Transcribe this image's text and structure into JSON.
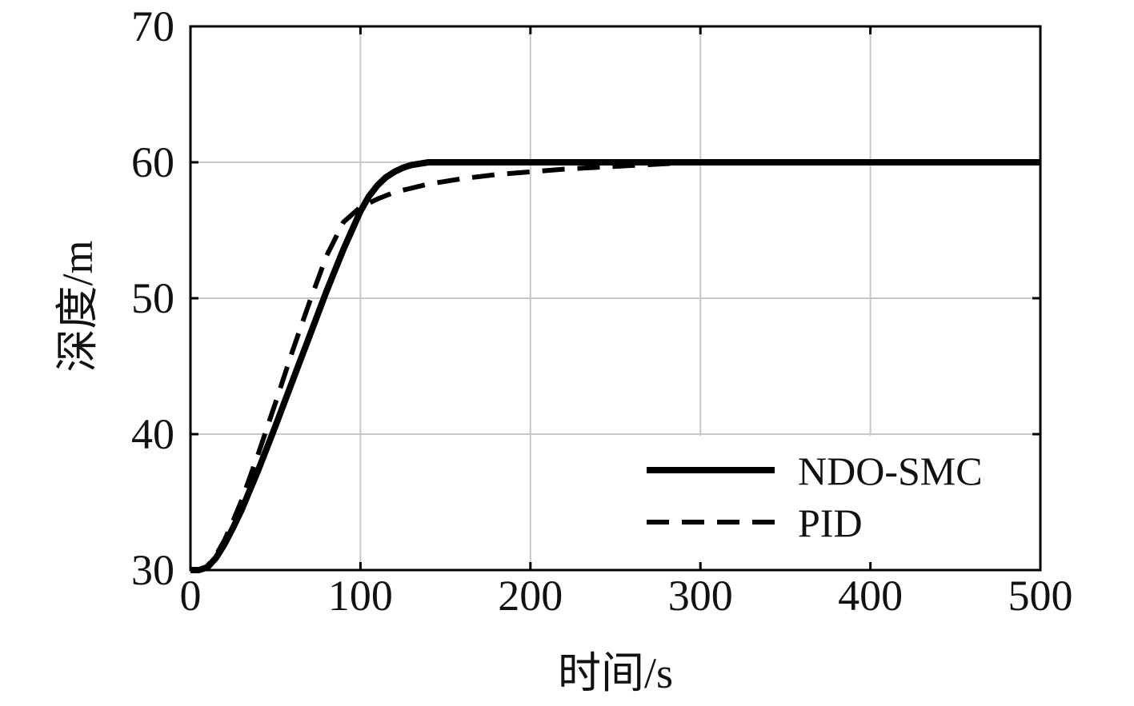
{
  "chart_data": {
    "type": "line",
    "title": "",
    "xlabel": "时间/s",
    "ylabel": "深度/m",
    "xlim": [
      0,
      500
    ],
    "ylim": [
      30,
      70
    ],
    "xticks": [
      0,
      100,
      200,
      300,
      400,
      500
    ],
    "yticks": [
      30,
      40,
      50,
      60,
      70
    ],
    "xtick_labels": [
      "0",
      "100",
      "200",
      "300",
      "400",
      "500"
    ],
    "ytick_labels": [
      "30",
      "40",
      "50",
      "60",
      "70"
    ],
    "grid": true,
    "legend_position": "bottom-right",
    "series": [
      {
        "name": "NDO-SMC",
        "style": "solid",
        "color": "#000000",
        "x": [
          0,
          5,
          10,
          15,
          20,
          25,
          30,
          40,
          50,
          60,
          70,
          80,
          90,
          100,
          105,
          110,
          115,
          120,
          125,
          130,
          135,
          140,
          150,
          160,
          200,
          250,
          300,
          400,
          500
        ],
        "y": [
          30,
          30,
          30.2,
          30.9,
          31.9,
          33.1,
          34.4,
          37.4,
          40.6,
          43.9,
          47.2,
          50.5,
          53.6,
          56.4,
          57.5,
          58.3,
          58.9,
          59.3,
          59.6,
          59.8,
          59.9,
          60,
          60,
          60,
          60,
          60,
          60,
          60,
          60
        ]
      },
      {
        "name": "PID",
        "style": "dashed",
        "color": "#000000",
        "x": [
          0,
          5,
          10,
          15,
          20,
          25,
          30,
          40,
          50,
          60,
          70,
          80,
          90,
          100,
          110,
          120,
          140,
          160,
          180,
          200,
          220,
          250,
          280,
          300,
          400,
          500
        ],
        "y": [
          30,
          30,
          30.3,
          31.1,
          32.2,
          33.6,
          35.1,
          38.6,
          42.3,
          46.1,
          49.7,
          53.1,
          55.6,
          56.7,
          57.3,
          57.8,
          58.4,
          58.8,
          59.1,
          59.3,
          59.5,
          59.7,
          59.9,
          60,
          60,
          60
        ]
      }
    ]
  }
}
